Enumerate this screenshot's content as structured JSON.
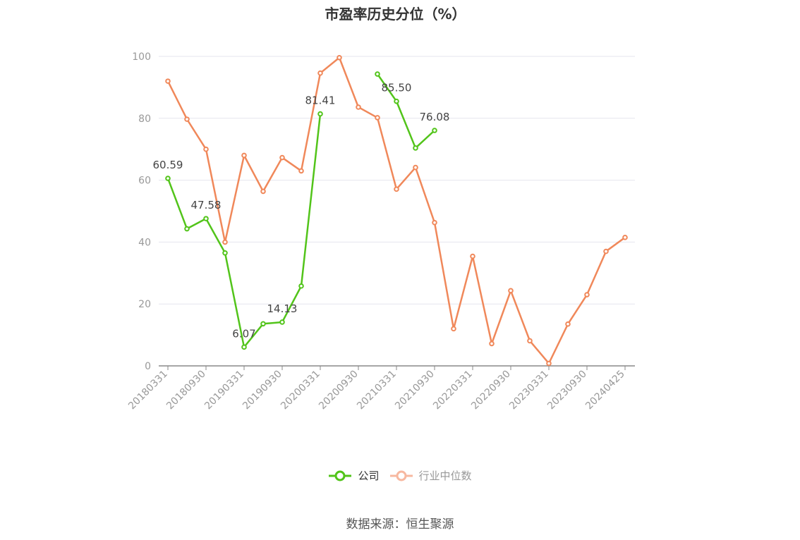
{
  "chart_data": {
    "type": "line",
    "title": "市盈率历史分位（%）",
    "xlabel": "",
    "ylabel": "",
    "ylim": [
      0,
      100
    ],
    "y_ticks": [
      "0",
      "20",
      "40",
      "60",
      "80",
      "100"
    ],
    "x": [
      "20180331",
      "20180630",
      "20180930",
      "20181231",
      "20190331",
      "20190630",
      "20190930",
      "20191231",
      "20200331",
      "20200630",
      "20200930",
      "20201231",
      "20210331",
      "20210630",
      "20210930",
      "20211231",
      "20220331",
      "20220630",
      "20220930",
      "20221231",
      "20230331",
      "20230630",
      "20230930",
      "20231231",
      "20240425"
    ],
    "x_tick_labels": [
      "20180331",
      "20180930",
      "20190331",
      "20190930",
      "20200331",
      "20200930",
      "20210331",
      "20210930",
      "20220331",
      "20220930",
      "20230331",
      "20230930",
      "20240425"
    ],
    "series": [
      {
        "name": "公司",
        "color": "#52c41a",
        "values": [
          60.59,
          44.3,
          47.58,
          36.5,
          6.07,
          13.6,
          14.13,
          25.8,
          81.41,
          null,
          null,
          94.3,
          85.5,
          70.4,
          76.08,
          null,
          null,
          null,
          null,
          null,
          null,
          null,
          null,
          null,
          null
        ],
        "labels": [
          "60.59",
          null,
          "47.58",
          null,
          "6.07",
          null,
          "14.13",
          null,
          "81.41",
          null,
          null,
          null,
          "85.50",
          null,
          "76.08",
          null,
          null,
          null,
          null,
          null,
          null,
          null,
          null,
          null,
          null
        ]
      },
      {
        "name": "行业中位数",
        "color": "#f0885a",
        "values": [
          92.0,
          79.7,
          70.0,
          40.0,
          68.0,
          56.4,
          67.3,
          63.0,
          94.6,
          99.6,
          83.6,
          80.2,
          57.1,
          64.1,
          46.3,
          12.0,
          35.4,
          7.2,
          24.3,
          8.1,
          0.8,
          13.5,
          23.0,
          37.0,
          41.5
        ]
      }
    ],
    "grid": true,
    "legend_position": "bottom"
  },
  "legend": {
    "items": [
      {
        "label": "公司",
        "color": "#52c41a"
      },
      {
        "label": "行业中位数",
        "color": "#f7b8a0"
      }
    ]
  },
  "footer": {
    "source": "数据来源：恒生聚源"
  }
}
